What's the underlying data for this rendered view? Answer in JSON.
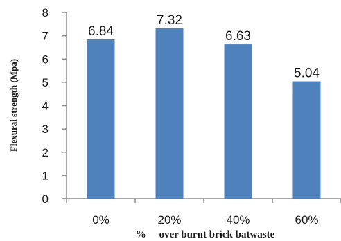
{
  "chart_data": {
    "type": "bar",
    "categories": [
      "0%",
      "20%",
      "40%",
      "60%"
    ],
    "values": [
      6.84,
      7.32,
      6.63,
      5.04
    ],
    "data_labels": [
      "6.84",
      "7.32",
      "6.63",
      "5.04"
    ],
    "y_ticks": [
      "0",
      "1",
      "2",
      "3",
      "4",
      "5",
      "6",
      "7",
      "8"
    ],
    "xlabel": "%     over burnt brick batwaste",
    "ylabel": "Flexural strength (Mpa)",
    "ylim": [
      0,
      8
    ],
    "grid": false,
    "legend": "none",
    "bar_color": "#4f81bd"
  }
}
